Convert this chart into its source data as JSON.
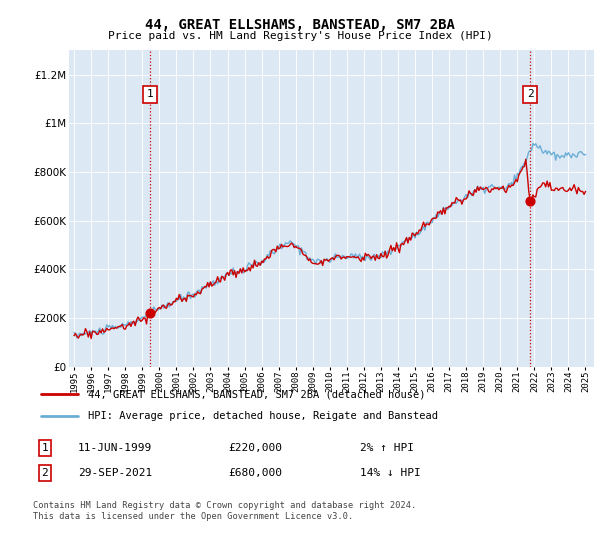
{
  "title": "44, GREAT ELLSHAMS, BANSTEAD, SM7 2BA",
  "subtitle": "Price paid vs. HM Land Registry's House Price Index (HPI)",
  "ylabel_ticks": [
    "£0",
    "£200K",
    "£400K",
    "£600K",
    "£800K",
    "£1M",
    "£1.2M"
  ],
  "ytick_vals": [
    0,
    200000,
    400000,
    600000,
    800000,
    1000000,
    1200000
  ],
  "ylim": [
    0,
    1300000
  ],
  "xlim_start": 1994.7,
  "xlim_end": 2025.5,
  "hpi_color": "#6baed6",
  "price_color": "#cc0000",
  "vline_color": "#cc0000",
  "vline_style": ":",
  "point1_x": 1999.44,
  "point1_y": 220000,
  "point2_x": 2021.75,
  "point2_y": 680000,
  "point1_label": "1",
  "point2_label": "2",
  "legend_line1": "44, GREAT ELLSHAMS, BANSTEAD, SM7 2BA (detached house)",
  "legend_line2": "HPI: Average price, detached house, Reigate and Banstead",
  "annotation1_date": "11-JUN-1999",
  "annotation1_price": "£220,000",
  "annotation1_hpi": "2% ↑ HPI",
  "annotation2_date": "29-SEP-2021",
  "annotation2_price": "£680,000",
  "annotation2_hpi": "14% ↓ HPI",
  "footer": "Contains HM Land Registry data © Crown copyright and database right 2024.\nThis data is licensed under the Open Government Licence v3.0.",
  "bg_color": "#ffffff",
  "plot_bg_color": "#dce9f5",
  "grid_color": "#ffffff",
  "xtick_years": [
    1995,
    1996,
    1997,
    1998,
    1999,
    2000,
    2001,
    2002,
    2003,
    2004,
    2005,
    2006,
    2007,
    2008,
    2009,
    2010,
    2011,
    2012,
    2013,
    2014,
    2015,
    2016,
    2017,
    2018,
    2019,
    2020,
    2021,
    2022,
    2023,
    2024,
    2025
  ]
}
